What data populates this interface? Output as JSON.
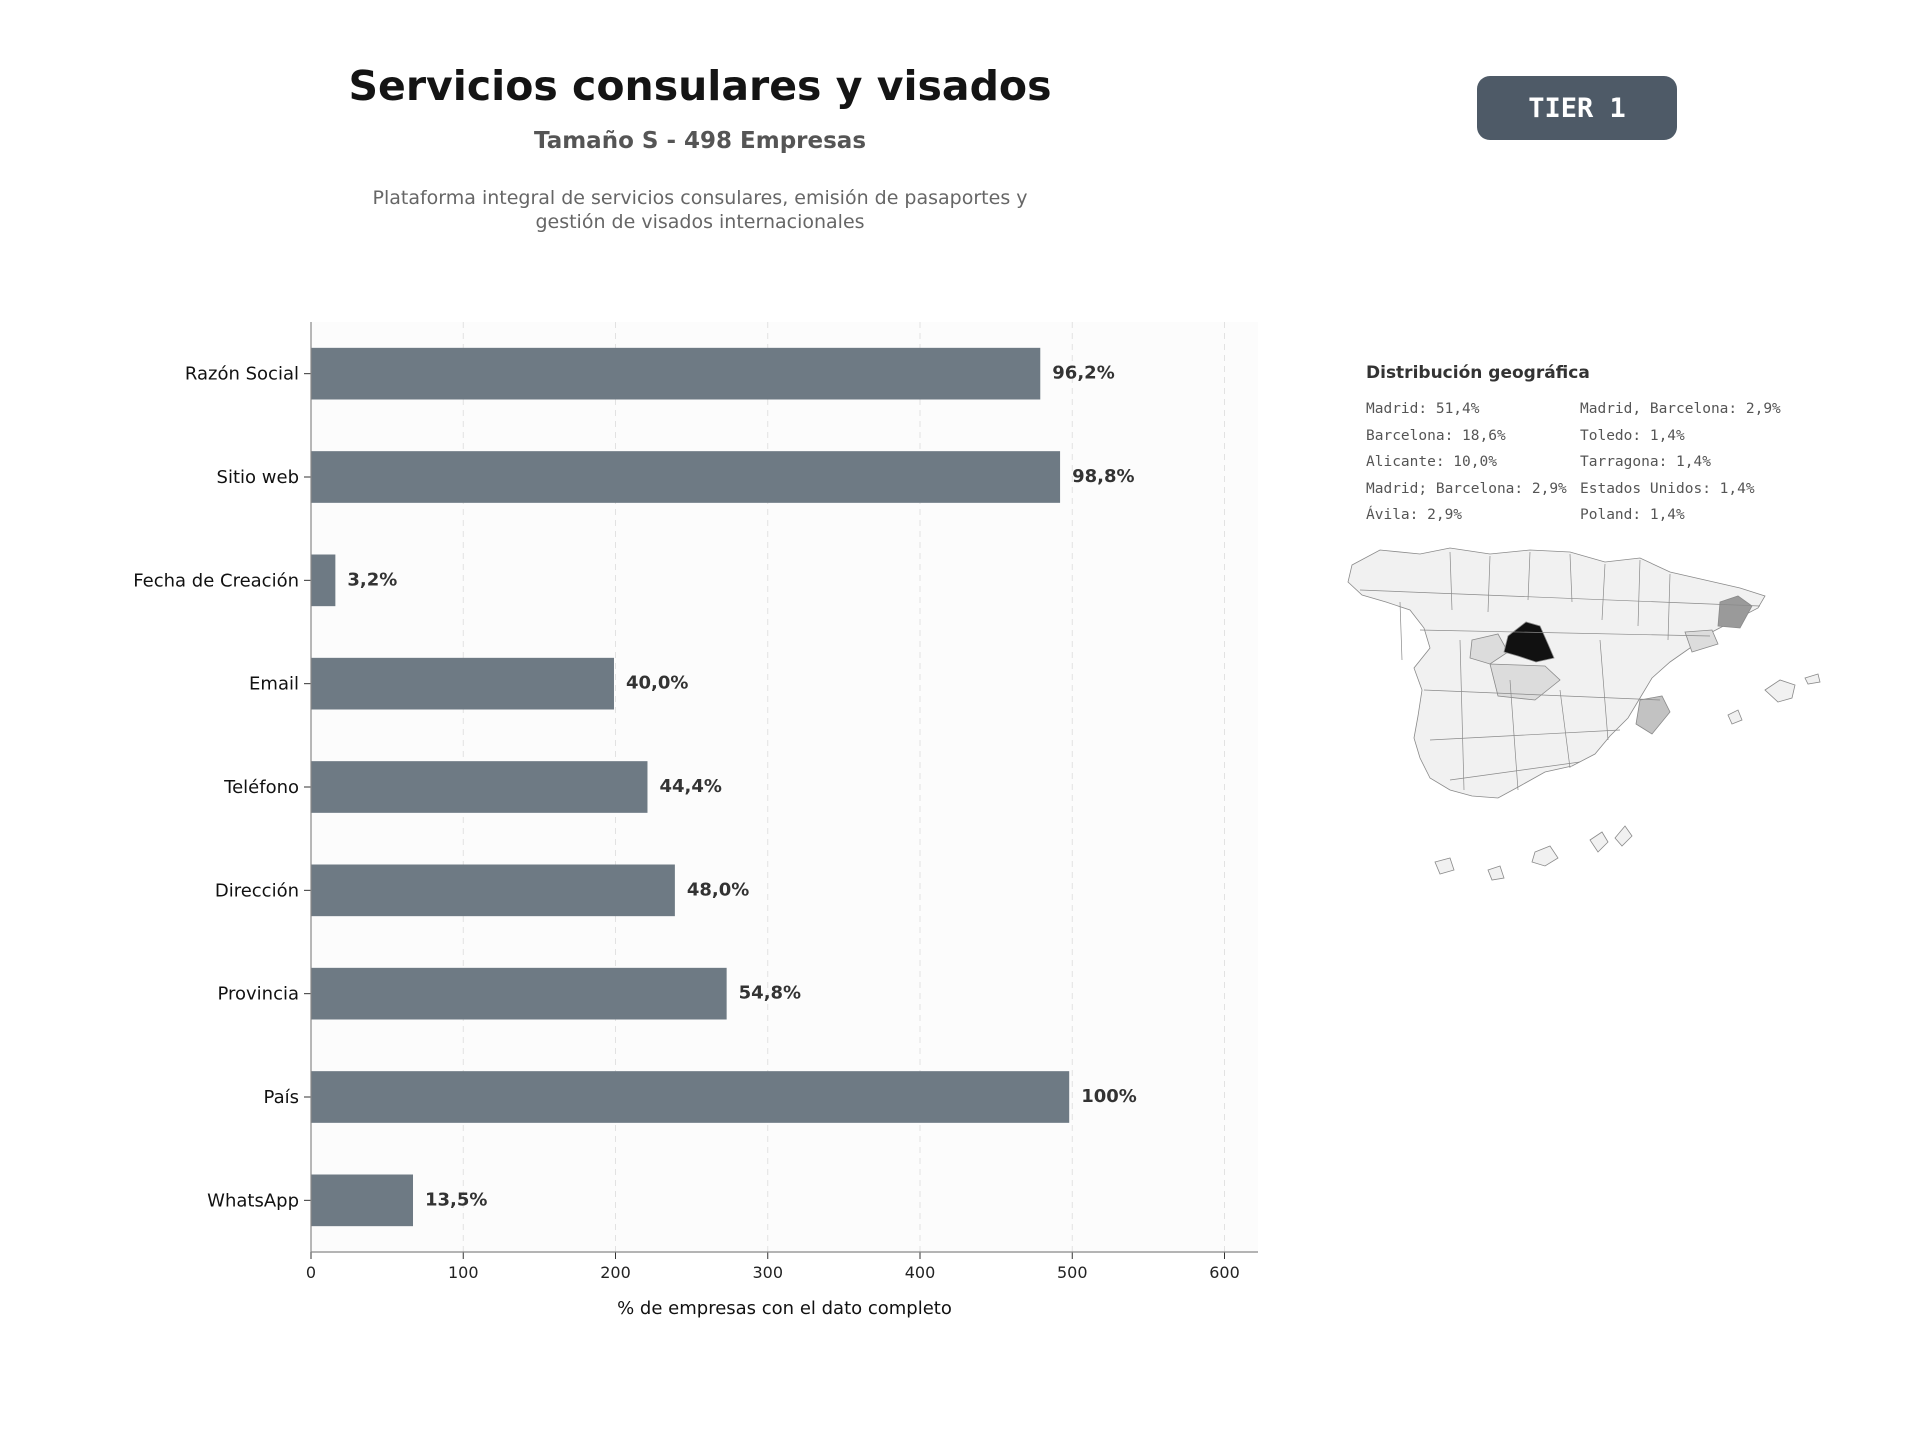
{
  "header": {
    "title": "Servicios consulares y visados",
    "subtitle": "Tamaño S - 498 Empresas",
    "description_line1": "Plataforma integral de servicios consulares, emisión de pasaportes y",
    "description_line2": "gestión de visados internacionales"
  },
  "badge": {
    "label": "TIER 1",
    "color": "#4e5a67"
  },
  "chart_data": {
    "type": "bar",
    "orientation": "horizontal",
    "categories": [
      "Razón Social",
      "Sitio web",
      "Fecha de Creación",
      "Email",
      "Teléfono",
      "Dirección",
      "Provincia",
      "País",
      "WhatsApp"
    ],
    "values": [
      479,
      492,
      16,
      199,
      221,
      239,
      273,
      498,
      67
    ],
    "data_labels": [
      "96,2%",
      "98,8%",
      "3,2%",
      "40,0%",
      "44,4%",
      "48,0%",
      "54,8%",
      "100%",
      "13,5%"
    ],
    "xlabel": "% de empresas con el dato completo",
    "xlim": [
      0,
      622
    ],
    "xticks": [
      0,
      100,
      200,
      300,
      400,
      500,
      600
    ],
    "grid": "vertical-dashed",
    "bar_color": "#6e7a84"
  },
  "geo": {
    "title": "Distribución geográfica",
    "col1": [
      "Madrid: 51,4%",
      "Barcelona: 18,6%",
      "Alicante: 10,0%",
      "Madrid; Barcelona: 2,9%",
      "Ávila: 2,9%"
    ],
    "col2": [
      "Madrid, Barcelona: 2,9%",
      "Toledo: 1,4%",
      "Tarragona: 1,4%",
      "Estados Unidos: 1,4%",
      "Poland: 1,4%"
    ],
    "map_colors": {
      "madrid": "#111111",
      "barcelona": "#9a9a9a",
      "alicante": "#c2c2c2",
      "low": "#dcdcdc",
      "base": "#f1f1f1",
      "border": "#8a8a8a"
    }
  }
}
